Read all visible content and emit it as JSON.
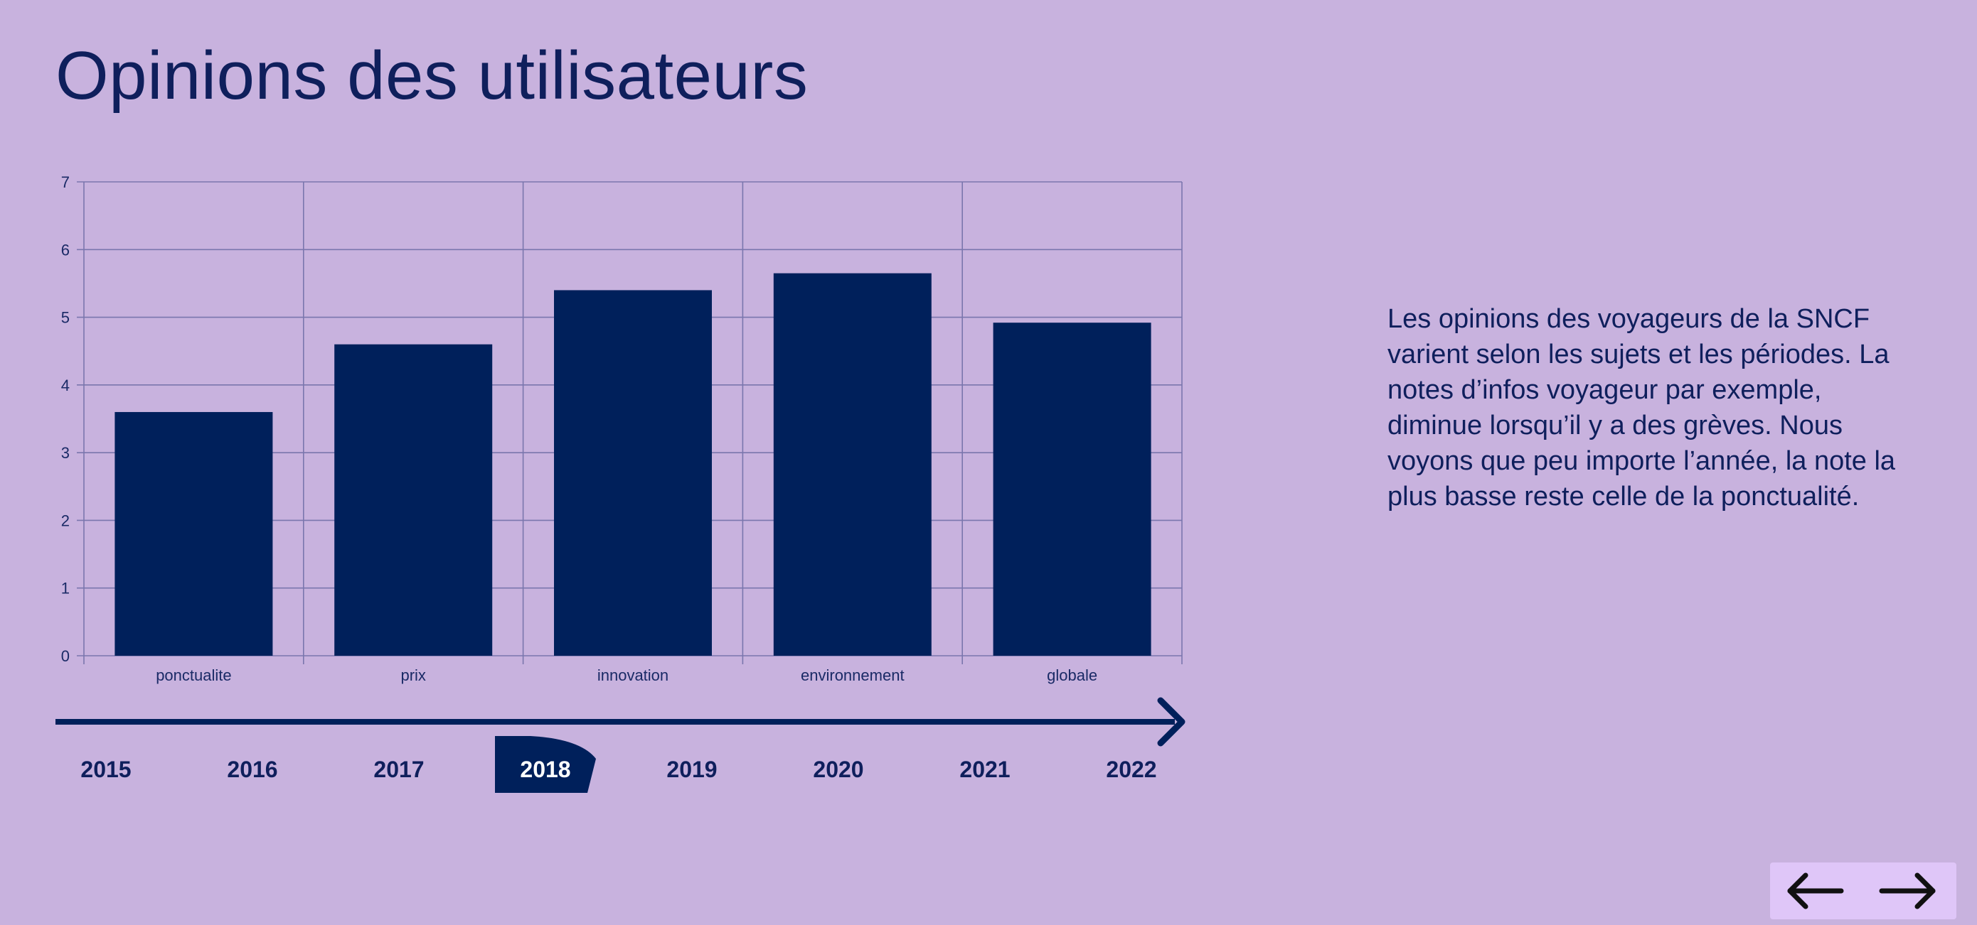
{
  "page": {
    "title": "Opinions des utilisateurs",
    "description": "Les opinions des voyageurs de la SNCF varient selon les sujets et les périodes. La notes d’infos voyageur par exemple, diminue lorsqu’il y a des grèves. Nous voyons que peu importe l’année, la note la plus basse reste celle de la ponctualité."
  },
  "timeline": {
    "years": [
      "2015",
      "2016",
      "2017",
      "2018",
      "2019",
      "2020",
      "2021",
      "2022"
    ],
    "selected": "2018"
  },
  "navigation": {
    "prev_icon": "arrow-left-icon",
    "next_icon": "arrow-right-icon"
  },
  "colors": {
    "background": "#c8b2de",
    "bar": "#00205b",
    "text": "#0f1f5c",
    "grid": "#7a76ad",
    "nav_box": "#dfc6f8"
  },
  "chart_data": {
    "type": "bar",
    "categories": [
      "ponctualite",
      "prix",
      "innovation",
      "environnement",
      "globale"
    ],
    "values": [
      3.6,
      4.6,
      5.4,
      5.65,
      4.92
    ],
    "ylim": [
      0,
      7
    ],
    "yticks": [
      0,
      1,
      2,
      3,
      4,
      5,
      6,
      7
    ],
    "grid": true,
    "legend": "none"
  }
}
